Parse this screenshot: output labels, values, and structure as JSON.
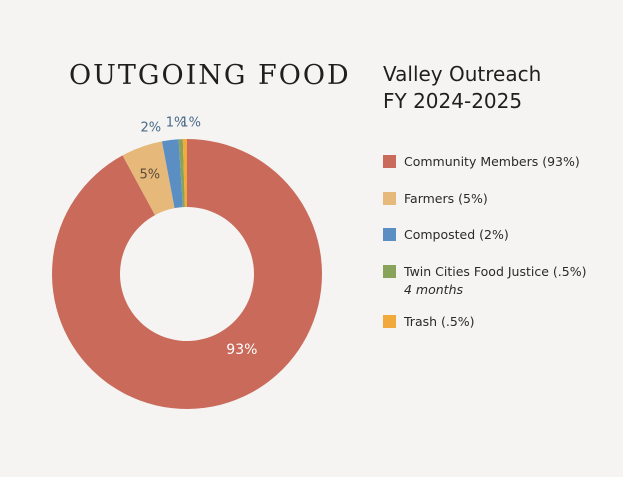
{
  "header": {
    "chart_title": "OUTGOING FOOD",
    "org_name": "Valley Outreach",
    "fiscal_year": "FY 2024-2025"
  },
  "colors": {
    "community": "#c96a5a",
    "farmers": "#e6b97a",
    "composted": "#5b8fc4",
    "twin_cities": "#8aa35a",
    "trash": "#f2a93b",
    "background": "#f5f4f2"
  },
  "chart_data": {
    "type": "pie",
    "title": "OUTGOING FOOD",
    "donut": true,
    "slices": [
      {
        "name": "Community Members",
        "value": 93,
        "label": "93%",
        "color": "#c96a5a"
      },
      {
        "name": "Farmers",
        "value": 5,
        "label": "5%",
        "color": "#e6b97a"
      },
      {
        "name": "Composted",
        "value": 2,
        "label": "2%",
        "color": "#5b8fc4"
      },
      {
        "name": "Twin Cities Food Justice",
        "value": 0.5,
        "label": "1%",
        "color": "#8aa35a"
      },
      {
        "name": "Trash",
        "value": 0.5,
        "label": "1%",
        "color": "#f2a93b"
      }
    ],
    "legend": [
      {
        "label": "Community Members (93%)",
        "color": "#c96a5a"
      },
      {
        "label": "Farmers (5%)",
        "color": "#e6b97a"
      },
      {
        "label": "Composted (2%)",
        "color": "#5b8fc4"
      },
      {
        "label": "Twin Cities Food Justice (.5%)",
        "note": "4 months",
        "color": "#8aa35a"
      },
      {
        "label": "Trash (.5%)",
        "color": "#f2a93b"
      }
    ],
    "legend_position": "right"
  }
}
